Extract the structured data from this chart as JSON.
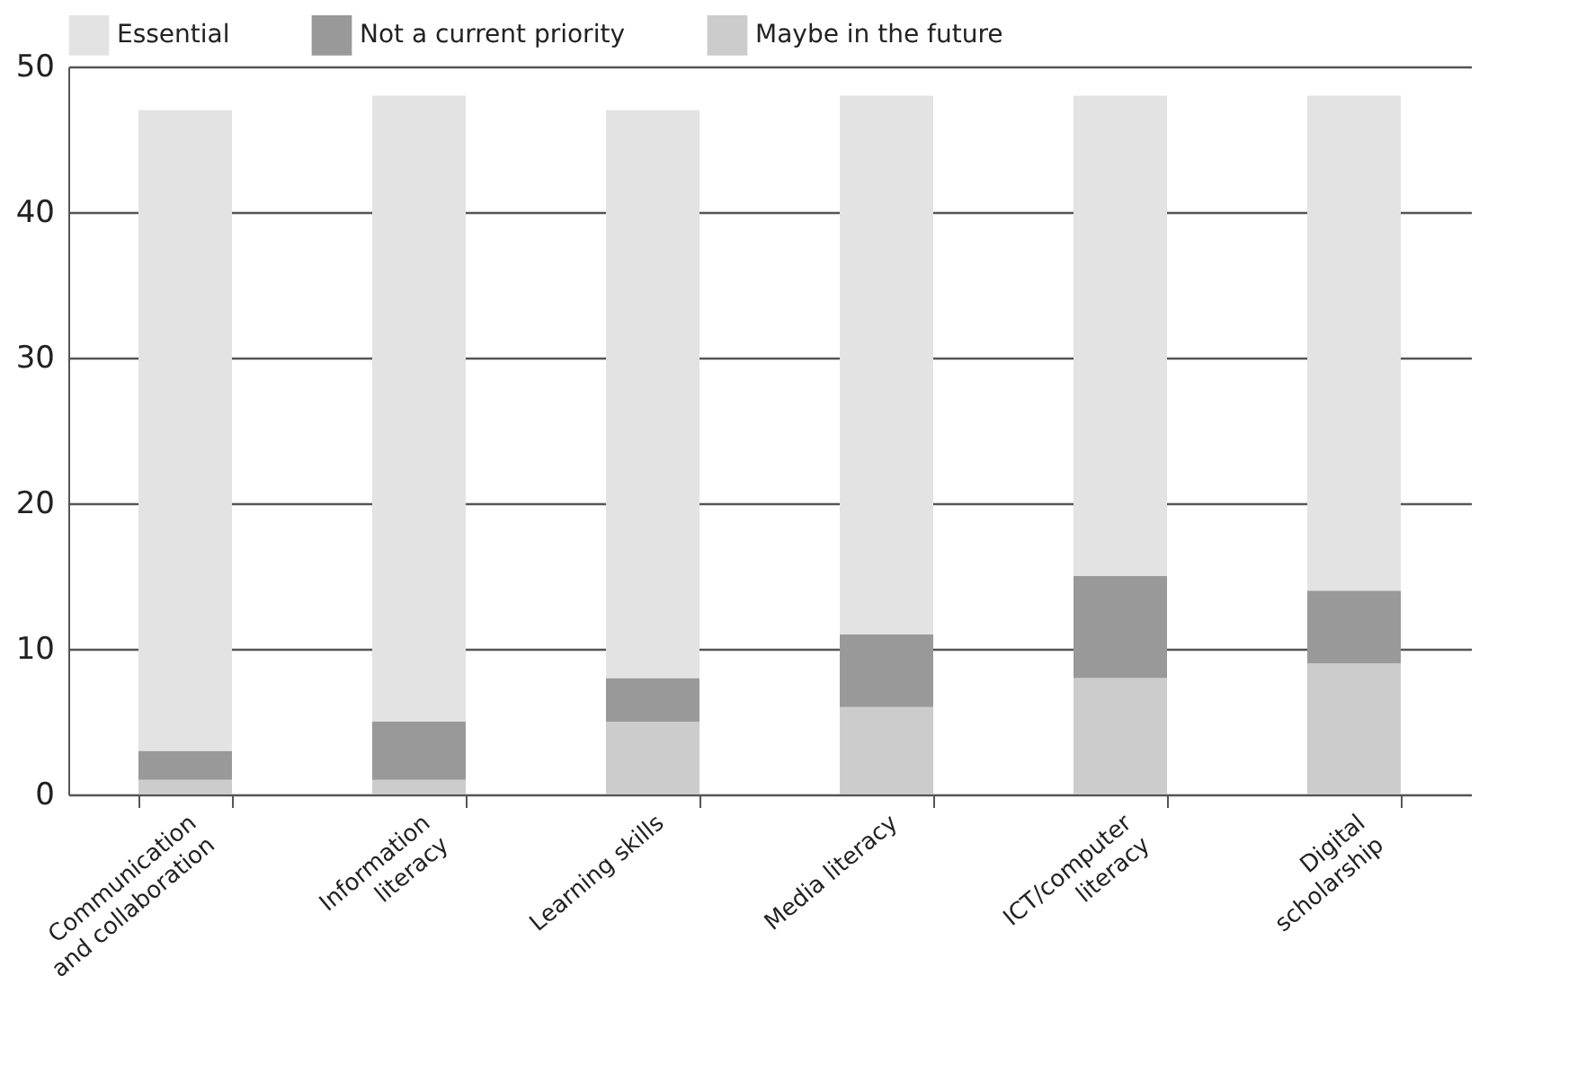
{
  "chart_data": {
    "type": "bar",
    "stacked": true,
    "categories": [
      "Communication and collaboration",
      "Information literacy",
      "Learning skills",
      "Media literacy",
      "ICT/computer literacy",
      "Digital scholarship"
    ],
    "series": [
      {
        "name": "Maybe in the future",
        "color": "#cccccc",
        "values": [
          1,
          1,
          5,
          6,
          8,
          9
        ]
      },
      {
        "name": "Not a current priority",
        "color": "#999999",
        "values": [
          2,
          4,
          3,
          5,
          7,
          5
        ]
      },
      {
        "name": "Essential",
        "color": "#e3e3e3",
        "values": [
          44,
          43,
          39,
          37,
          33,
          34
        ]
      }
    ],
    "ylim": [
      0,
      50
    ],
    "yticks": [
      0,
      10,
      20,
      30,
      40,
      50
    ],
    "grid": "y",
    "legend": "top"
  }
}
